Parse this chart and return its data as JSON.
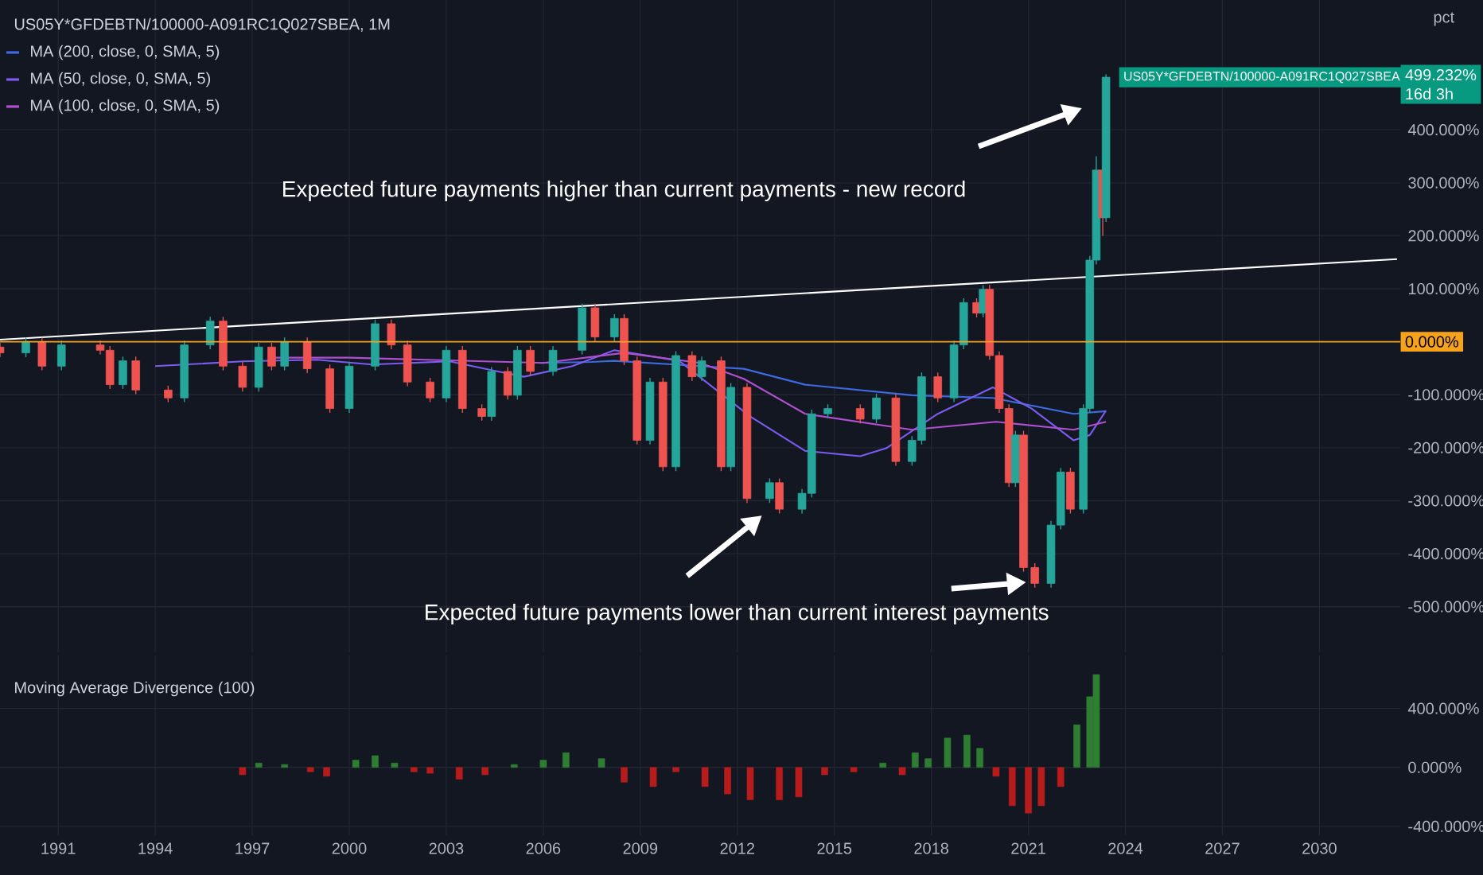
{
  "chart_data": [
    {
      "type": "candlestick",
      "title": "US05Y*GFDEBTN/100000-A091RC1Q027SBEA, 1M",
      "ylabel": "pct",
      "x": [
        1989.2,
        1990.0,
        1990.5,
        1991.1,
        1992.3,
        1992.6,
        1993.0,
        1993.4,
        1994.4,
        1994.9,
        1995.7,
        1996.1,
        1996.7,
        1997.2,
        1997.6,
        1998.0,
        1998.7,
        1999.4,
        2000.0,
        2000.8,
        2001.3,
        2001.8,
        2002.5,
        2003.0,
        2003.5,
        2004.1,
        2004.4,
        2004.9,
        2005.2,
        2005.6,
        2006.3,
        2007.2,
        2007.6,
        2008.2,
        2008.5,
        2008.9,
        2009.3,
        2009.7,
        2010.1,
        2010.6,
        2010.9,
        2011.5,
        2011.8,
        2012.3,
        2013.0,
        2013.3,
        2014.0,
        2014.3,
        2014.8,
        2015.8,
        2016.3,
        2016.9,
        2017.4,
        2017.7,
        2018.2,
        2018.7,
        2019.0,
        2019.4,
        2019.6,
        2019.8,
        2020.1,
        2020.4,
        2020.6,
        2020.85,
        2021.2,
        2021.7,
        2022.0,
        2022.3,
        2022.7,
        2022.9,
        2023.1,
        2023.3,
        2023.4
      ],
      "ohlc": [
        [
          -10,
          -2,
          -29,
          -21
        ],
        [
          -21,
          8,
          -29,
          0
        ],
        [
          0,
          8,
          -54,
          -46
        ],
        [
          -46,
          2,
          -54,
          -6
        ],
        [
          -6,
          2,
          -24,
          -16
        ],
        [
          -16,
          -8,
          -89,
          -81
        ],
        [
          -81,
          -28,
          -89,
          -36
        ],
        [
          -36,
          -28,
          -99,
          -91
        ],
        [
          -91,
          -83,
          -114,
          -106
        ],
        [
          -106,
          2,
          -114,
          -6
        ],
        [
          -6,
          47,
          -14,
          39
        ],
        [
          39,
          47,
          -54,
          -46
        ],
        [
          -46,
          -38,
          -94,
          -86
        ],
        [
          -86,
          -2,
          -94,
          -10
        ],
        [
          -10,
          -2,
          -54,
          -46
        ],
        [
          -46,
          8,
          -54,
          0
        ],
        [
          0,
          8,
          -59,
          -51
        ],
        [
          -51,
          -43,
          -134,
          -126
        ],
        [
          -126,
          -38,
          -134,
          -46
        ],
        [
          -46,
          42,
          -54,
          34
        ],
        [
          34,
          42,
          -14,
          -6
        ],
        [
          -6,
          2,
          -84,
          -76
        ],
        [
          -76,
          -68,
          -114,
          -106
        ],
        [
          -106,
          -8,
          -114,
          -16
        ],
        [
          -16,
          -8,
          -134,
          -126
        ],
        [
          -126,
          -118,
          -149,
          -141
        ],
        [
          -141,
          -48,
          -149,
          -56
        ],
        [
          -56,
          -48,
          -109,
          -101
        ],
        [
          -101,
          -8,
          -109,
          -16
        ],
        [
          -16,
          -8,
          -64,
          -56
        ],
        [
          -56,
          -8,
          -64,
          -16
        ],
        [
          -16,
          72,
          -24,
          64
        ],
        [
          64,
          72,
          1,
          9
        ],
        [
          9,
          52,
          1,
          44
        ],
        [
          44,
          52,
          -44,
          -36
        ],
        [
          -36,
          -28,
          -194,
          -186
        ],
        [
          -186,
          -68,
          -194,
          -76
        ],
        [
          -76,
          -68,
          -244,
          -236
        ],
        [
          -236,
          -18,
          -244,
          -26
        ],
        [
          -26,
          -18,
          -74,
          -66
        ],
        [
          -66,
          -28,
          -74,
          -36
        ],
        [
          -36,
          -28,
          -244,
          -236
        ],
        [
          -236,
          -78,
          -244,
          -86
        ],
        [
          -86,
          -78,
          -304,
          -296
        ],
        [
          -296,
          -258,
          -304,
          -266
        ],
        [
          -266,
          -258,
          -324,
          -316
        ],
        [
          -316,
          -278,
          -324,
          -286
        ],
        [
          -286,
          -128,
          -294,
          -136
        ],
        [
          -136,
          -118,
          -144,
          -126
        ],
        [
          -126,
          -118,
          -154,
          -146
        ],
        [
          -146,
          -98,
          -154,
          -106
        ],
        [
          -106,
          -98,
          -234,
          -226
        ],
        [
          -226,
          -178,
          -234,
          -186
        ],
        [
          -186,
          -58,
          -194,
          -66
        ],
        [
          -66,
          -58,
          -114,
          -106
        ],
        [
          -106,
          2,
          -114,
          -6
        ],
        [
          -6,
          82,
          -14,
          74
        ],
        [
          74,
          82,
          46,
          54
        ],
        [
          54,
          107,
          46,
          99
        ],
        [
          99,
          107,
          -34,
          -26
        ],
        [
          -26,
          -18,
          -134,
          -126
        ],
        [
          -126,
          -118,
          -274,
          -266
        ],
        [
          -266,
          -168,
          -274,
          -176
        ],
        [
          -176,
          -168,
          -434,
          -426
        ],
        [
          -426,
          -418,
          -464,
          -456
        ],
        [
          -456,
          -338,
          -464,
          -346
        ],
        [
          -346,
          -238,
          -354,
          -246
        ],
        [
          -246,
          -238,
          -324,
          -316
        ],
        [
          -316,
          -118,
          -324,
          -126
        ],
        [
          -126,
          162,
          -134,
          154
        ],
        [
          154,
          350,
          146,
          324
        ],
        [
          324,
          332,
          200,
          234
        ],
        [
          234,
          505,
          226,
          499.232
        ]
      ],
      "series": [
        {
          "name": "MA (200, close, 0, SMA, 5)",
          "type": "line",
          "color": "#3d6ae0",
          "x": [
            2005.9,
            2007.5,
            2008.2,
            2010.85,
            2012.2,
            2014.1,
            2017.4,
            2019.9,
            2022.4,
            2023.4
          ],
          "values": [
            -40,
            -38,
            -36,
            -46,
            -51,
            -81,
            -101,
            -106,
            -136,
            -131
          ]
        },
        {
          "name": "MA (50, close, 0, SMA, 5)",
          "type": "line",
          "color": "#7b5cf0",
          "x": [
            1994.0,
            1996.7,
            1999.0,
            2000.7,
            2003.1,
            2004.6,
            2005.4,
            2006.9,
            2008.2,
            2010.2,
            2012.4,
            2014.1,
            2015.8,
            2016.6,
            2018.2,
            2019.9,
            2021.1,
            2022.4,
            2022.9,
            2023.4
          ],
          "values": [
            -46,
            -37,
            -34,
            -43,
            -37,
            -56,
            -66,
            -46,
            -16,
            -36,
            -141,
            -206,
            -216,
            -201,
            -136,
            -86,
            -126,
            -186,
            -176,
            -130
          ]
        },
        {
          "name": "MA (100, close, 0, SMA, 5)",
          "type": "line",
          "color": "#b04fd0",
          "x": [
            1997.5,
            2000.0,
            2003.0,
            2006.0,
            2008.5,
            2010.85,
            2012.2,
            2014.1,
            2017.4,
            2020.0,
            2022.4,
            2023.4
          ],
          "values": [
            -30,
            -30,
            -35,
            -40,
            -21,
            -40,
            -70,
            -136,
            -166,
            -151,
            -166,
            -151
          ]
        },
        {
          "type": "line",
          "color": "#ffffff",
          "x": [
            1989.2,
            2032.4
          ],
          "values": [
            4,
            156
          ]
        }
      ],
      "xlim": [
        1989.2,
        2032.5
      ],
      "ylim": [
        -586,
        645
      ],
      "xticks": [
        1991,
        1994,
        1997,
        2000,
        2003,
        2006,
        2009,
        2012,
        2015,
        2018,
        2021,
        2024,
        2027,
        2030
      ],
      "yticks": [
        {
          "value": -500,
          "label": "-500.000%"
        },
        {
          "value": -400,
          "label": "-400.000%"
        },
        {
          "value": -300,
          "label": "-300.000%"
        },
        {
          "value": -200,
          "label": "-200.000%"
        },
        {
          "value": -100,
          "label": "-100.000%"
        },
        {
          "value": 100,
          "label": "100.000%"
        },
        {
          "value": 200,
          "label": "200.000%"
        },
        {
          "value": 300,
          "label": "300.000%"
        },
        {
          "value": 400,
          "label": "400.000%"
        }
      ],
      "ref_lines": [
        {
          "axis": "y",
          "value": 0,
          "label": "0.000%",
          "color": "#f7a21b"
        }
      ],
      "annotations": [
        "Expected future payments higher than current payments - new record",
        "Expected future payments lower than current interest payments",
        "US05Y*GFDEBTN/100000-A091RC1Q027SBEA",
        "499.232%",
        "16d 3h"
      ],
      "legend": "top left",
      "tick_labels": "y",
      "grid": true
    },
    {
      "type": "bar",
      "title": "Moving Average Divergence (100)",
      "x": [
        1996.7,
        1997.2,
        1998.0,
        1998.8,
        1999.3,
        2000.2,
        2000.8,
        2001.4,
        2002.0,
        2002.5,
        2003.4,
        2004.2,
        2005.1,
        2006.0,
        2006.7,
        2007.8,
        2008.5,
        2009.4,
        2010.1,
        2011.0,
        2011.7,
        2012.4,
        2013.3,
        2013.9,
        2014.7,
        2015.6,
        2016.5,
        2017.1,
        2017.5,
        2017.9,
        2018.5,
        2019.1,
        2019.5,
        2020.0,
        2020.5,
        2021.0,
        2021.4,
        2022.0,
        2022.5,
        2022.9,
        2023.1
      ],
      "values": [
        -50,
        30,
        20,
        -30,
        -60,
        50,
        80,
        30,
        -30,
        -40,
        -80,
        -50,
        20,
        50,
        100,
        60,
        -100,
        -130,
        -30,
        -130,
        -180,
        -220,
        -220,
        -200,
        -50,
        -30,
        30,
        -50,
        100,
        60,
        200,
        220,
        130,
        -60,
        -260,
        -310,
        -260,
        -130,
        290,
        480,
        630
      ],
      "colors": [
        "#b71c1c",
        "#2e7d32",
        "#2e7d32",
        "#b71c1c",
        "#b71c1c",
        "#2e7d32",
        "#2e7d32",
        "#2e7d32",
        "#b71c1c",
        "#b71c1c",
        "#b71c1c",
        "#b71c1c",
        "#2e7d32",
        "#2e7d32",
        "#2e7d32",
        "#2e7d32",
        "#b71c1c",
        "#b71c1c",
        "#b71c1c",
        "#b71c1c",
        "#b71c1c",
        "#b71c1c",
        "#b71c1c",
        "#b71c1c",
        "#b71c1c",
        "#b71c1c",
        "#2e7d32",
        "#b71c1c",
        "#2e7d32",
        "#2e7d32",
        "#2e7d32",
        "#2e7d32",
        "#2e7d32",
        "#b71c1c",
        "#b71c1c",
        "#b71c1c",
        "#b71c1c",
        "#b71c1c",
        "#2e7d32",
        "#2e7d32",
        "#2e7d32"
      ],
      "xlim": [
        1989.2,
        2032.5
      ],
      "ylim": [
        -460,
        760
      ],
      "xticks": [
        1991,
        1994,
        1997,
        2000,
        2003,
        2006,
        2009,
        2012,
        2015,
        2018,
        2021,
        2024,
        2027,
        2030
      ],
      "yticks": [
        {
          "value": -400,
          "label": "-400.000%"
        },
        {
          "value": 0,
          "label": "0.000%"
        },
        {
          "value": 400,
          "label": "400.000%"
        }
      ],
      "grid": true
    }
  ]
}
